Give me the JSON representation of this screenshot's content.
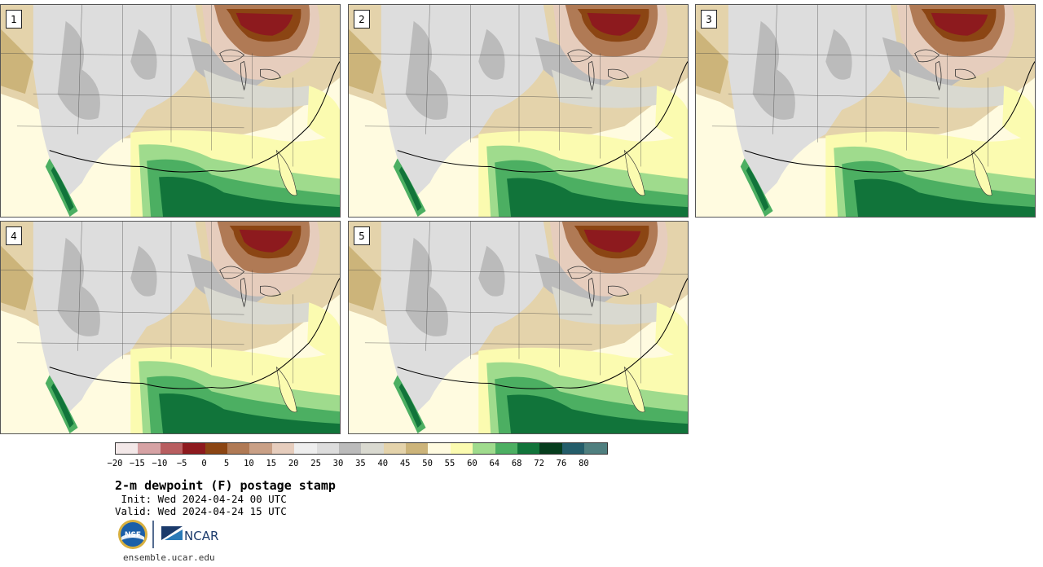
{
  "panels": [
    {
      "label": "1"
    },
    {
      "label": "2"
    },
    {
      "label": "3"
    },
    {
      "label": "4"
    },
    {
      "label": "5"
    }
  ],
  "colorbar": {
    "colors": [
      "#f3e8e8",
      "#d6a2a4",
      "#b85e60",
      "#8d1a1e",
      "#8b4513",
      "#b07a55",
      "#c9a086",
      "#e6cdbd",
      "#eeeeee",
      "#dddddd",
      "#bbbbbb",
      "#d9d9d0",
      "#e4d3ab",
      "#ccb47a",
      "#fffbe0",
      "#fbfbb0",
      "#9fdb8d",
      "#4caf62",
      "#11743a",
      "#063d1d",
      "#245d6a",
      "#4f7f7f"
    ],
    "ticks": [
      "−20",
      "−15",
      "−10",
      "−5",
      "0",
      "5",
      "10",
      "15",
      "20",
      "25",
      "30",
      "35",
      "40",
      "45",
      "50",
      "55",
      "60",
      "64",
      "68",
      "72",
      "76",
      "80"
    ]
  },
  "title": "2-m dewpoint (F) postage stamp",
  "init": " Init: Wed 2024-04-24 00 UTC",
  "valid": "Valid: Wed 2024-04-24 15 UTC",
  "logos": {
    "nsf_text": "NSF",
    "ncar_text": "NCAR"
  },
  "website": "ensemble.ucar.edu"
}
